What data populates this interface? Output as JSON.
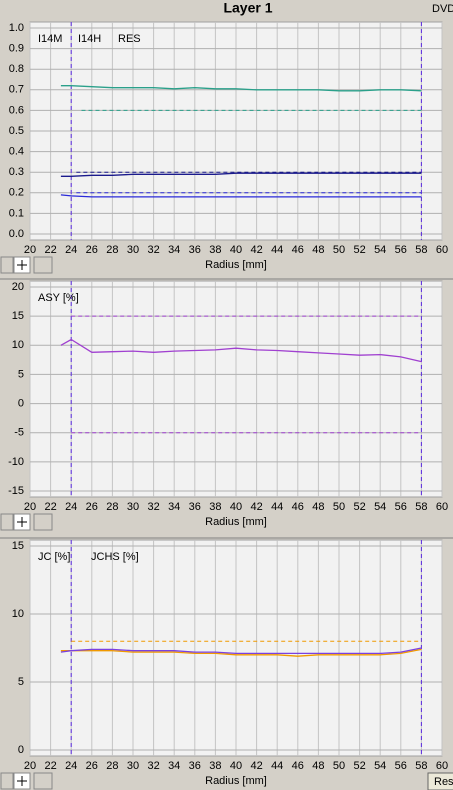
{
  "title": "Layer 1",
  "header_right": "DVD",
  "button": "Res",
  "chart_data": [
    {
      "type": "line",
      "xlabel": "Radius [mm]",
      "xlim": [
        20,
        60
      ],
      "xticks": [
        20,
        22,
        24,
        26,
        28,
        30,
        32,
        34,
        36,
        38,
        40,
        42,
        44,
        46,
        48,
        50,
        52,
        54,
        56,
        58,
        60
      ],
      "ylim": [
        0,
        1
      ],
      "yticks": [
        {
          "value": 0,
          "label": "0.0"
        },
        0.1,
        0.2,
        0.3,
        0.4,
        0.5,
        0.6,
        0.7,
        0.8,
        0.9,
        {
          "value": 1,
          "label": "1.0"
        }
      ],
      "grid": true,
      "x": [
        23,
        24,
        26,
        28,
        30,
        32,
        34,
        36,
        38,
        40,
        42,
        44,
        46,
        48,
        50,
        52,
        54,
        56,
        58
      ],
      "series": [
        {
          "name": "I14M",
          "color": "#2aa08a",
          "values": [
            0.72,
            0.72,
            0.715,
            0.71,
            0.71,
            0.71,
            0.705,
            0.71,
            0.705,
            0.705,
            0.7,
            0.7,
            0.7,
            0.7,
            0.695,
            0.695,
            0.7,
            0.7,
            0.695
          ]
        },
        {
          "name": "I14H",
          "color": "#1a1a8c",
          "values": [
            0.28,
            0.28,
            0.285,
            0.285,
            0.29,
            0.29,
            0.29,
            0.29,
            0.29,
            0.295,
            0.295,
            0.295,
            0.295,
            0.295,
            0.295,
            0.295,
            0.295,
            0.295,
            0.295
          ]
        },
        {
          "name": "RES",
          "color": "#2a2ad8",
          "values": [
            0.19,
            0.185,
            0.18,
            0.18,
            0.18,
            0.18,
            0.18,
            0.18,
            0.18,
            0.18,
            0.18,
            0.18,
            0.18,
            0.18,
            0.18,
            0.18,
            0.18,
            0.18,
            0.18
          ]
        }
      ],
      "limits": [
        {
          "value": 0.6,
          "x": [
            25,
            58
          ],
          "color": "#2aa08a"
        },
        {
          "value": 0.3,
          "x": [
            24.5,
            58
          ],
          "color": "#1a1a8c"
        },
        {
          "value": 0.2,
          "x": [
            24.5,
            58
          ],
          "color": "#2a2ad8"
        }
      ],
      "markers_x": [
        24,
        58
      ]
    },
    {
      "type": "line",
      "xlabel": "Radius [mm]",
      "xlim": [
        20,
        60
      ],
      "xticks": [
        20,
        22,
        24,
        26,
        28,
        30,
        32,
        34,
        36,
        38,
        40,
        42,
        44,
        46,
        48,
        50,
        52,
        54,
        56,
        58,
        60
      ],
      "ylim": [
        -15,
        20
      ],
      "yticks": [
        -15,
        -10,
        -5,
        0,
        5,
        10,
        15,
        20
      ],
      "grid": true,
      "x": [
        23,
        24,
        26,
        28,
        30,
        32,
        34,
        36,
        38,
        40,
        42,
        44,
        46,
        48,
        50,
        52,
        54,
        56,
        58
      ],
      "series": [
        {
          "name": "ASY [%]",
          "color": "#a040d0",
          "values": [
            10,
            11,
            8.8,
            8.9,
            9,
            8.8,
            9,
            9.1,
            9.2,
            9.5,
            9.2,
            9.1,
            8.9,
            8.7,
            8.5,
            8.3,
            8.4,
            8,
            7.2
          ]
        }
      ],
      "limits": [
        {
          "value": 15,
          "x": [
            24,
            58
          ],
          "color": "#a040d0"
        },
        {
          "value": -5,
          "x": [
            24,
            58
          ],
          "color": "#a040d0"
        }
      ],
      "markers_x": [
        24,
        58
      ]
    },
    {
      "type": "line",
      "xlabel": "Radius [mm]",
      "xlim": [
        20,
        60
      ],
      "xticks": [
        20,
        22,
        24,
        26,
        28,
        30,
        32,
        34,
        36,
        38,
        40,
        42,
        44,
        46,
        48,
        50,
        52,
        54,
        56,
        58,
        60
      ],
      "ylim": [
        0,
        15
      ],
      "yticks": [
        0,
        5,
        10,
        15
      ],
      "grid": true,
      "x": [
        23,
        24,
        26,
        28,
        30,
        32,
        34,
        36,
        38,
        40,
        42,
        44,
        46,
        48,
        50,
        52,
        54,
        56,
        58
      ],
      "series": [
        {
          "name": "JC [%]",
          "color": "#f09a00",
          "values": [
            7.3,
            7.3,
            7.3,
            7.3,
            7.2,
            7.2,
            7.2,
            7.1,
            7.1,
            7,
            7,
            7,
            6.9,
            7,
            7,
            7,
            7,
            7.1,
            7.4
          ]
        },
        {
          "name": "JCHS [%]",
          "color": "#7a40e0",
          "values": [
            7.2,
            7.3,
            7.4,
            7.4,
            7.3,
            7.3,
            7.3,
            7.2,
            7.2,
            7.1,
            7.1,
            7.1,
            7.1,
            7.1,
            7.1,
            7.1,
            7.1,
            7.2,
            7.5
          ]
        }
      ],
      "limits": [
        {
          "value": 8,
          "x": [
            24,
            58
          ],
          "color": "#f09a00"
        }
      ],
      "markers_x": [
        24,
        58
      ]
    }
  ]
}
